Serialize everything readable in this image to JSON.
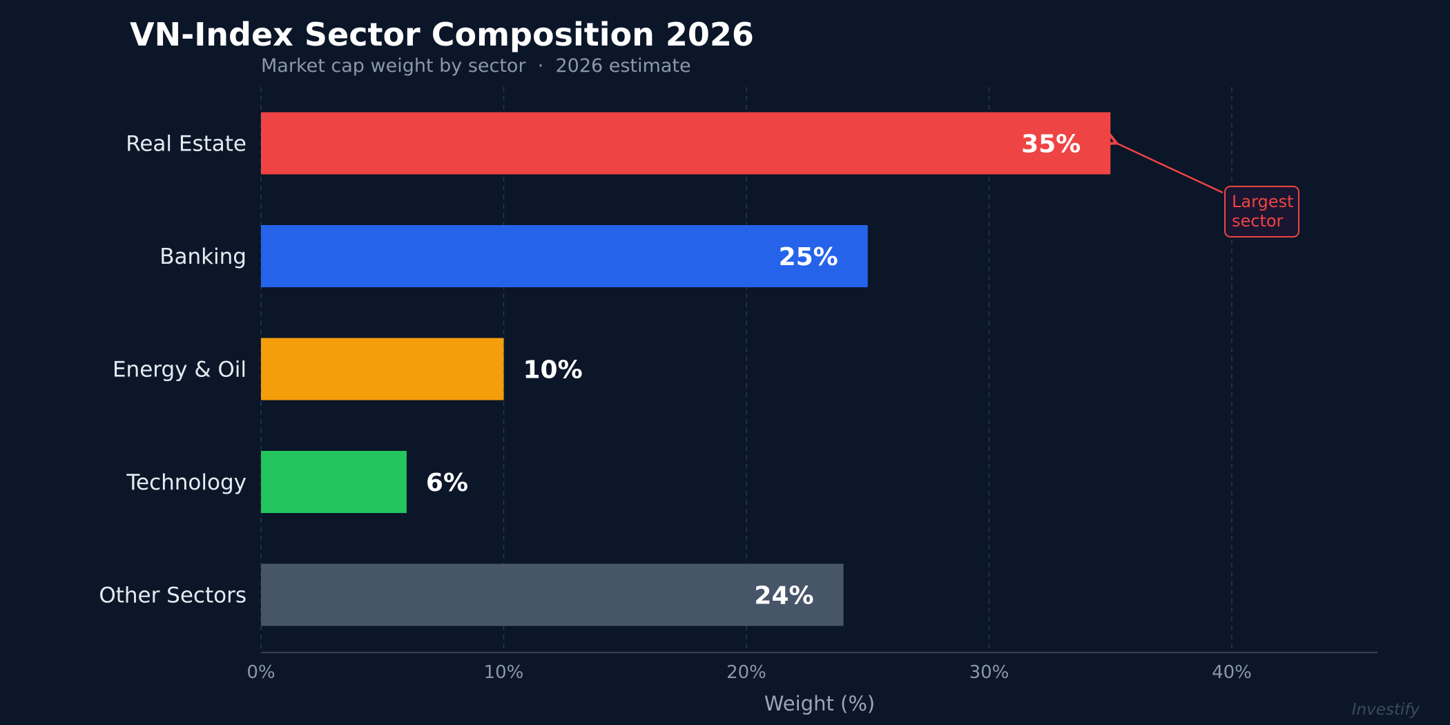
{
  "chart_data": {
    "type": "bar",
    "orientation": "horizontal",
    "title": "VN-Index Sector Composition 2026",
    "subtitle": "Market cap weight by sector  ·  2026 estimate",
    "xlabel": "Weight (%)",
    "ylabel": "",
    "xlim": [
      0,
      46
    ],
    "xticks": [
      0,
      10,
      20,
      30,
      40
    ],
    "xtick_labels": [
      "0%",
      "10%",
      "20%",
      "30%",
      "40%"
    ],
    "grid": "vertical dashed",
    "categories": [
      "Real Estate",
      "Banking",
      "Energy & Oil",
      "Technology",
      "Other Sectors"
    ],
    "values": [
      35,
      25,
      10,
      6,
      24
    ],
    "value_labels": [
      "35%",
      "25%",
      "10%",
      "6%",
      "24%"
    ],
    "colors": [
      "#ef4444",
      "#2563eb",
      "#f59e0b",
      "#22c55e",
      "#475569"
    ],
    "annotation": {
      "lines": [
        "Largest",
        "sector"
      ],
      "target_category": "Real Estate",
      "color": "#ef4444"
    },
    "watermark": "Investify"
  },
  "colors": {
    "background": "#0b1628",
    "grid": "#1e3a5f",
    "axis": "#334155"
  }
}
